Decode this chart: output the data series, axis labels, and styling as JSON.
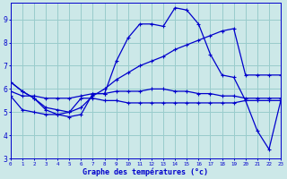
{
  "x": [
    0,
    1,
    2,
    3,
    4,
    5,
    6,
    7,
    8,
    9,
    10,
    11,
    12,
    13,
    14,
    15,
    16,
    17,
    18,
    19,
    20,
    21,
    22,
    23
  ],
  "temp_main": [
    6.3,
    5.9,
    5.6,
    5.1,
    4.9,
    4.8,
    4.9,
    5.8,
    5.8,
    7.2,
    8.2,
    8.8,
    8.8,
    8.7,
    9.5,
    9.4,
    8.8,
    7.5,
    6.6,
    6.5,
    5.5,
    4.2,
    3.4,
    5.5
  ],
  "temp_line2": [
    6.3,
    5.9,
    5.6,
    5.2,
    5.1,
    5.0,
    5.2,
    5.7,
    6.0,
    6.4,
    6.7,
    7.0,
    7.2,
    7.4,
    7.7,
    7.9,
    8.1,
    8.3,
    8.5,
    8.6,
    6.6,
    6.6,
    6.6,
    6.6
  ],
  "temp_line3": [
    5.9,
    5.7,
    5.7,
    5.6,
    5.6,
    5.6,
    5.7,
    5.8,
    5.8,
    5.9,
    5.9,
    5.9,
    6.0,
    6.0,
    5.9,
    5.9,
    5.8,
    5.8,
    5.7,
    5.7,
    5.6,
    5.6,
    5.6,
    5.6
  ],
  "temp_line4": [
    5.7,
    5.1,
    5.0,
    4.9,
    4.9,
    5.0,
    5.6,
    5.6,
    5.5,
    5.5,
    5.4,
    5.4,
    5.4,
    5.4,
    5.4,
    5.4,
    5.4,
    5.4,
    5.4,
    5.4,
    5.5,
    5.5,
    5.5,
    5.5
  ],
  "bg_color": "#cce8e8",
  "grid_color": "#99cccc",
  "line_color": "#0000cc",
  "ylim_min": 3,
  "ylim_max": 9.7,
  "xlim_min": 0,
  "xlim_max": 23,
  "xlabel": "Graphe des températures (°c)"
}
